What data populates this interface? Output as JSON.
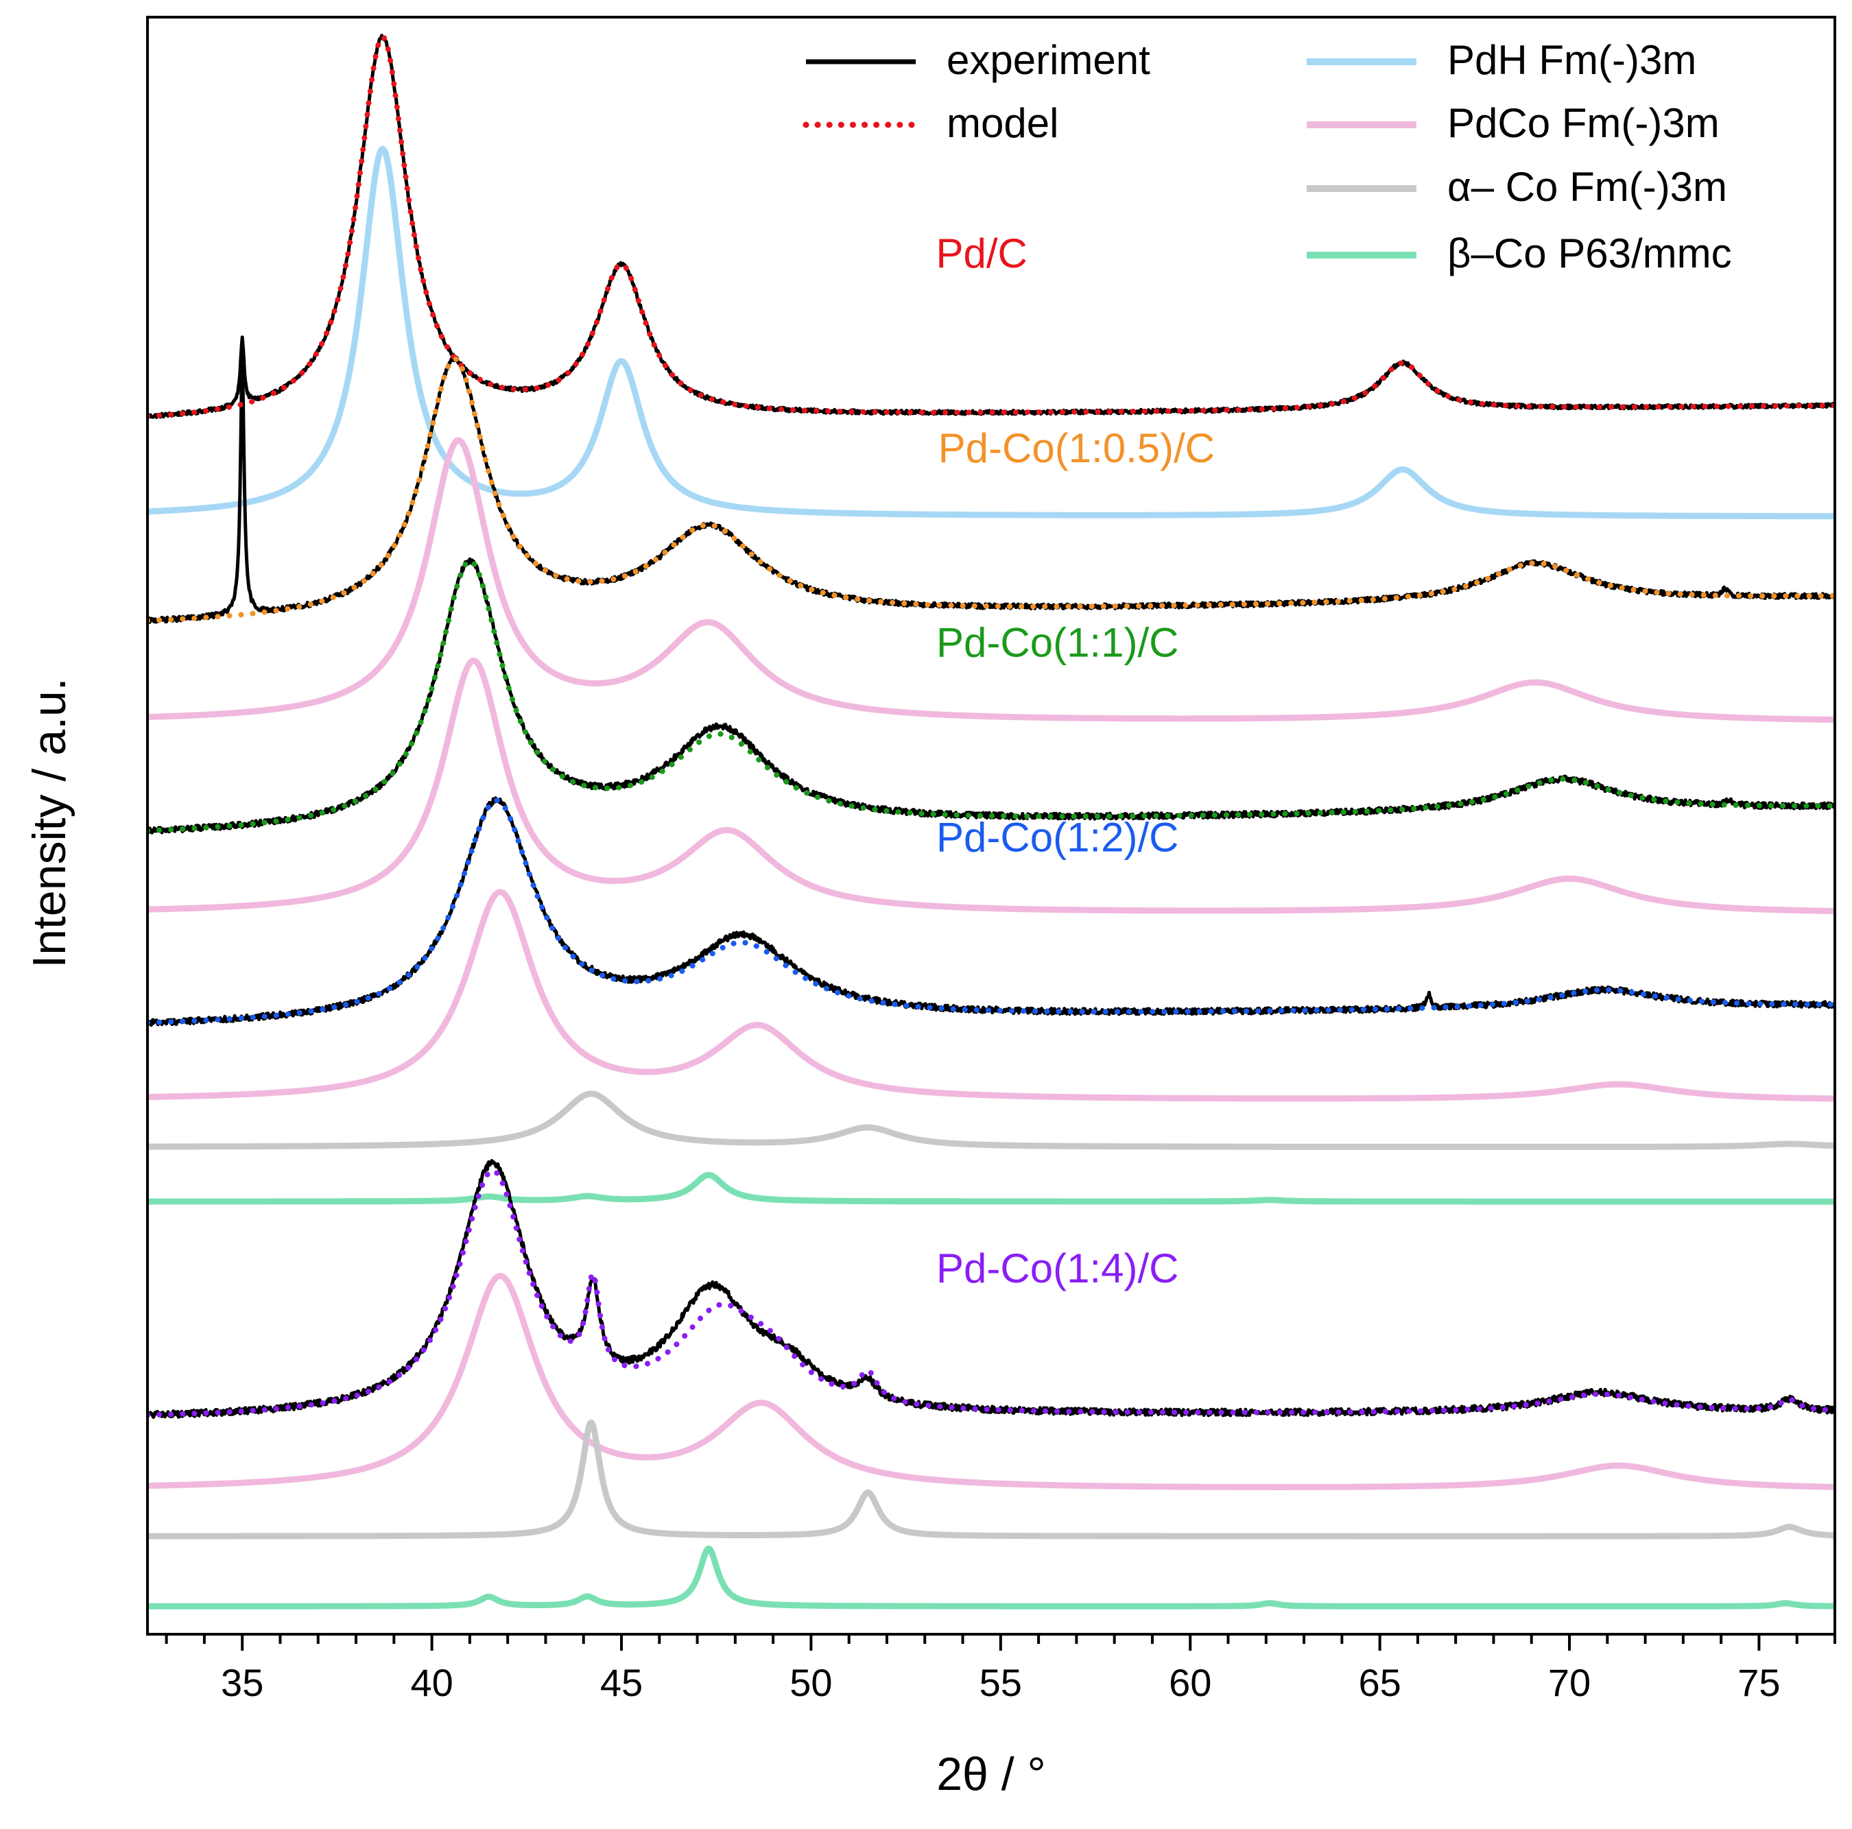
{
  "chart_data": {
    "type": "line",
    "xlabel": "2θ / °",
    "ylabel": "Intensity / a.u.",
    "xlim": [
      32.5,
      77
    ],
    "ylim": [
      0,
      10
    ],
    "x_ticks": [
      35,
      40,
      45,
      50,
      55,
      60,
      65,
      70,
      75
    ],
    "x_tick_labels": [
      "35",
      "40",
      "45",
      "50",
      "55",
      "60",
      "65",
      "70",
      "75"
    ],
    "y_ticks_shown": false,
    "grid": false,
    "legend_position": "top-right",
    "legend": [
      {
        "label": "experiment",
        "color": "#000000",
        "style": "solid"
      },
      {
        "label": "model",
        "color": "#e8141c",
        "style": "dotted"
      },
      {
        "label": "PdH Fm(-)3m",
        "color": "#a6d8f5",
        "style": "solid"
      },
      {
        "label": "PdCo Fm(-)3m",
        "color": "#f1b8de",
        "style": "solid"
      },
      {
        "label": "α– Co Fm(-)3m",
        "color": "#c8c8c8",
        "style": "solid"
      },
      {
        "label": "β–Co P63/mmc",
        "color": "#7ae0b3",
        "style": "solid"
      }
    ],
    "sample_labels": [
      {
        "text": "Pd/C",
        "color": "#e8141c",
        "x": 54.5,
        "y": 8.7
      },
      {
        "text": "Pd-Co(1:0.5)/C",
        "color": "#f39228",
        "x": 57.0,
        "y": 7.45
      },
      {
        "text": "Pd-Co(1:1)/C",
        "color": "#1a9a1a",
        "x": 56.5,
        "y": 6.2
      },
      {
        "text": "Pd-Co(1:2)/C",
        "color": "#1a5cf0",
        "x": 56.5,
        "y": 4.95
      },
      {
        "text": "Pd-Co(1:4)/C",
        "color": "#8a1ef5",
        "x": 56.5,
        "y": 2.18
      }
    ],
    "series": [
      {
        "name": "Pd/C experiment",
        "role": "experiment",
        "color": "#000000",
        "style": "solid",
        "baseline": 7.7,
        "slope": 0.0025,
        "noise": 0.012,
        "peaks": [
          {
            "x": 38.7,
            "h": 2.45,
            "w": 0.8
          },
          {
            "x": 45.0,
            "h": 0.95,
            "w": 0.8
          },
          {
            "x": 65.6,
            "h": 0.3,
            "w": 0.75
          },
          {
            "x": 35.0,
            "h": 0.42,
            "w": 0.06
          }
        ]
      },
      {
        "name": "Pd/C model",
        "role": "model",
        "color": "#e8141c",
        "style": "dotted",
        "baseline": 7.7,
        "slope": 0.0025,
        "peaks": [
          {
            "x": 38.7,
            "h": 2.45,
            "w": 0.8
          },
          {
            "x": 45.0,
            "h": 0.95,
            "w": 0.8
          },
          {
            "x": 65.6,
            "h": 0.3,
            "w": 0.75
          }
        ]
      },
      {
        "name": "PdH Fm(-)3m",
        "role": "phase",
        "color": "#a6d8f5",
        "style": "solid",
        "baseline": 7.1,
        "slope": 0.0,
        "peaks": [
          {
            "x": 38.7,
            "h": 2.35,
            "w": 0.7
          },
          {
            "x": 45.0,
            "h": 0.97,
            "w": 0.7
          },
          {
            "x": 65.6,
            "h": 0.3,
            "w": 0.8
          }
        ]
      },
      {
        "name": "Pd-Co(1:0.5)/C experiment",
        "role": "experiment",
        "color": "#000000",
        "style": "solid",
        "baseline": 6.4,
        "slope": 0.004,
        "noise": 0.015,
        "peaks": [
          {
            "x": 40.6,
            "h": 1.65,
            "w": 1.0
          },
          {
            "x": 47.3,
            "h": 0.55,
            "w": 1.6
          },
          {
            "x": 69.1,
            "h": 0.25,
            "w": 1.6
          },
          {
            "x": 35.0,
            "h": 1.6,
            "w": 0.06
          },
          {
            "x": 74.1,
            "h": 0.05,
            "w": 0.08
          }
        ]
      },
      {
        "name": "Pd-Co(1:0.5)/C model",
        "role": "model",
        "color": "#f39228",
        "style": "dotted",
        "baseline": 6.4,
        "slope": 0.004,
        "peaks": [
          {
            "x": 40.6,
            "h": 1.65,
            "w": 1.0
          },
          {
            "x": 47.3,
            "h": 0.55,
            "w": 1.6
          },
          {
            "x": 69.1,
            "h": 0.25,
            "w": 1.6
          }
        ]
      },
      {
        "name": "PdCo (1:0.5)",
        "role": "phase",
        "color": "#f1b8de",
        "style": "solid",
        "baseline": 5.78,
        "slope": 0.0,
        "peaks": [
          {
            "x": 40.7,
            "h": 1.78,
            "w": 1.0
          },
          {
            "x": 47.3,
            "h": 0.6,
            "w": 1.5
          },
          {
            "x": 69.1,
            "h": 0.25,
            "w": 1.8
          }
        ]
      },
      {
        "name": "Pd-Co(1:1)/C experiment",
        "role": "experiment",
        "color": "#000000",
        "style": "solid",
        "baseline": 5.05,
        "slope": 0.004,
        "noise": 0.018,
        "peaks": [
          {
            "x": 41.0,
            "h": 1.7,
            "w": 1.05
          },
          {
            "x": 47.6,
            "h": 0.6,
            "w": 1.6
          },
          {
            "x": 69.8,
            "h": 0.21,
            "w": 1.7
          },
          {
            "x": 74.2,
            "h": 0.04,
            "w": 0.1
          }
        ]
      },
      {
        "name": "Pd-Co(1:1)/C model",
        "role": "model",
        "color": "#1a9a1a",
        "style": "dotted",
        "baseline": 5.05,
        "slope": 0.004,
        "peaks": [
          {
            "x": 41.0,
            "h": 1.7,
            "w": 1.05
          },
          {
            "x": 47.6,
            "h": 0.55,
            "w": 1.6
          },
          {
            "x": 69.8,
            "h": 0.21,
            "w": 1.7
          }
        ]
      },
      {
        "name": "PdCo (1:1)",
        "role": "phase",
        "color": "#f1b8de",
        "style": "solid",
        "baseline": 4.55,
        "slope": 0.0,
        "peaks": [
          {
            "x": 41.1,
            "h": 1.6,
            "w": 1.0
          },
          {
            "x": 47.8,
            "h": 0.5,
            "w": 1.5
          },
          {
            "x": 70.0,
            "h": 0.22,
            "w": 1.8
          }
        ]
      },
      {
        "name": "Pd-Co(1:2)/C experiment",
        "role": "experiment",
        "color": "#000000",
        "style": "solid",
        "baseline": 3.82,
        "slope": 0.003,
        "noise": 0.018,
        "peaks": [
          {
            "x": 41.7,
            "h": 1.4,
            "w": 1.2
          },
          {
            "x": 48.2,
            "h": 0.5,
            "w": 1.7
          },
          {
            "x": 70.9,
            "h": 0.12,
            "w": 1.8
          },
          {
            "x": 66.3,
            "h": 0.08,
            "w": 0.08
          }
        ]
      },
      {
        "name": "Pd-Co(1:2)/C model",
        "role": "model",
        "color": "#1a5cf0",
        "style": "dotted",
        "baseline": 3.82,
        "slope": 0.003,
        "peaks": [
          {
            "x": 41.7,
            "h": 1.4,
            "w": 1.2
          },
          {
            "x": 48.2,
            "h": 0.45,
            "w": 1.7
          },
          {
            "x": 70.9,
            "h": 0.12,
            "w": 1.8
          }
        ]
      },
      {
        "name": "PdCo (1:2)",
        "role": "phase",
        "color": "#f1b8de",
        "style": "solid",
        "baseline": 3.35,
        "slope": 0.0,
        "peaks": [
          {
            "x": 41.8,
            "h": 1.32,
            "w": 1.1
          },
          {
            "x": 48.6,
            "h": 0.45,
            "w": 1.4
          },
          {
            "x": 71.3,
            "h": 0.1,
            "w": 1.8
          }
        ]
      },
      {
        "name": "α-Co (1:2)",
        "role": "phase",
        "color": "#c8c8c8",
        "style": "solid",
        "baseline": 3.05,
        "slope": 0.0,
        "peaks": [
          {
            "x": 44.2,
            "h": 0.34,
            "w": 1.0
          },
          {
            "x": 51.5,
            "h": 0.12,
            "w": 1.0
          },
          {
            "x": 75.8,
            "h": 0.02,
            "w": 1.0
          }
        ]
      },
      {
        "name": "β-Co (1:2)",
        "role": "phase",
        "color": "#7ae0b3",
        "style": "solid",
        "baseline": 2.7,
        "slope": 0.0,
        "peaks": [
          {
            "x": 41.5,
            "h": 0.03,
            "w": 0.5
          },
          {
            "x": 44.1,
            "h": 0.03,
            "w": 0.5
          },
          {
            "x": 47.3,
            "h": 0.17,
            "w": 0.5
          },
          {
            "x": 62.1,
            "h": 0.01,
            "w": 0.5
          }
        ]
      },
      {
        "name": "Pd-Co(1:4)/C experiment",
        "role": "experiment",
        "color": "#000000",
        "style": "solid",
        "baseline": 1.3,
        "slope": 0.001,
        "noise": 0.02,
        "peaks": [
          {
            "x": 41.6,
            "h": 1.6,
            "w": 1.1
          },
          {
            "x": 44.25,
            "h": 0.55,
            "w": 0.22
          },
          {
            "x": 47.4,
            "h": 0.75,
            "w": 1.3
          },
          {
            "x": 49.4,
            "h": 0.2,
            "w": 1.0
          },
          {
            "x": 51.5,
            "h": 0.12,
            "w": 0.3
          },
          {
            "x": 70.8,
            "h": 0.13,
            "w": 1.7
          },
          {
            "x": 75.8,
            "h": 0.07,
            "w": 0.3
          }
        ]
      },
      {
        "name": "Pd-Co(1:4)/C model",
        "role": "model",
        "color": "#8a1ef5",
        "style": "dotted",
        "baseline": 1.3,
        "slope": 0.001,
        "peaks": [
          {
            "x": 41.6,
            "h": 1.55,
            "w": 1.1
          },
          {
            "x": 44.25,
            "h": 0.6,
            "w": 0.22
          },
          {
            "x": 47.6,
            "h": 0.6,
            "w": 1.4
          },
          {
            "x": 49.0,
            "h": 0.2,
            "w": 1.0
          },
          {
            "x": 51.5,
            "h": 0.18,
            "w": 0.3
          },
          {
            "x": 70.8,
            "h": 0.12,
            "w": 1.7
          },
          {
            "x": 75.8,
            "h": 0.07,
            "w": 0.3
          }
        ]
      },
      {
        "name": "PdCo (1:4)",
        "role": "phase",
        "color": "#f1b8de",
        "style": "solid",
        "baseline": 0.85,
        "slope": 0.0,
        "peaks": [
          {
            "x": 41.8,
            "h": 1.35,
            "w": 1.15
          },
          {
            "x": 48.7,
            "h": 0.52,
            "w": 1.45
          },
          {
            "x": 71.3,
            "h": 0.15,
            "w": 1.8
          }
        ]
      },
      {
        "name": "α-Co (1:4)",
        "role": "phase",
        "color": "#c8c8c8",
        "style": "solid",
        "baseline": 0.55,
        "slope": 0.0,
        "peaks": [
          {
            "x": 44.2,
            "h": 0.73,
            "w": 0.3
          },
          {
            "x": 51.5,
            "h": 0.28,
            "w": 0.35
          },
          {
            "x": 75.8,
            "h": 0.06,
            "w": 0.4
          }
        ]
      },
      {
        "name": "β-Co (1:4)",
        "role": "phase",
        "color": "#7ae0b3",
        "style": "solid",
        "baseline": 0.1,
        "slope": 0.0,
        "peaks": [
          {
            "x": 41.5,
            "h": 0.06,
            "w": 0.3
          },
          {
            "x": 44.1,
            "h": 0.06,
            "w": 0.3
          },
          {
            "x": 47.3,
            "h": 0.37,
            "w": 0.3
          },
          {
            "x": 62.1,
            "h": 0.02,
            "w": 0.3
          },
          {
            "x": 75.7,
            "h": 0.02,
            "w": 0.3
          }
        ]
      }
    ]
  }
}
